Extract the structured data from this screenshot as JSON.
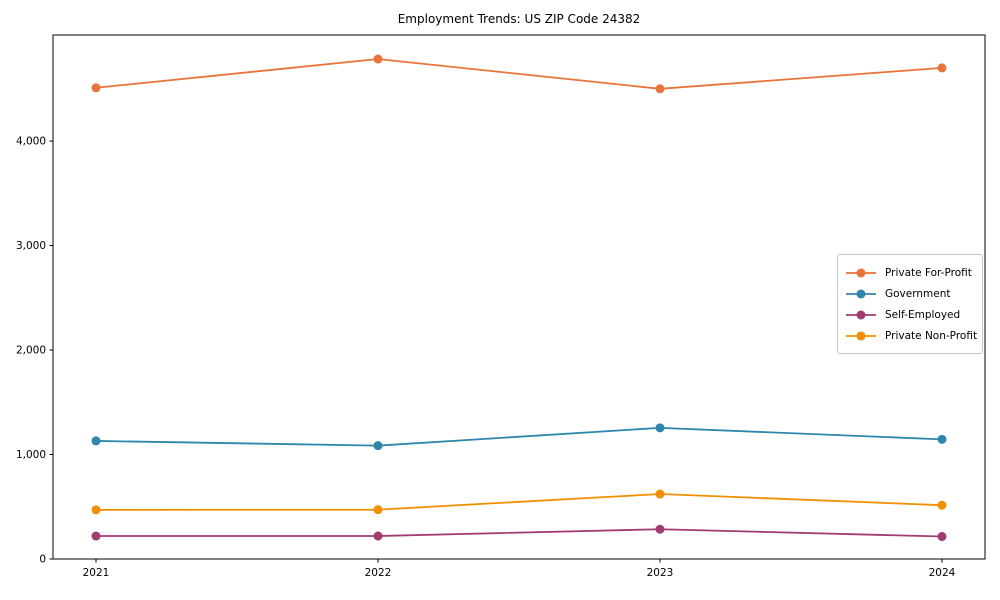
{
  "figure": {
    "title": "Employment Trends: US ZIP Code 24382",
    "background_color": "#ffffff",
    "axis_color": "#000000",
    "tick_label_color": "#000000"
  },
  "chart_data": {
    "type": "line",
    "title": "Employment Trends: US ZIP Code 24382",
    "xlabel": "",
    "ylabel": "",
    "x": [
      2021,
      2022,
      2023,
      2024
    ],
    "x_tick_labels": [
      "2021",
      "2022",
      "2023",
      "2024"
    ],
    "series": [
      {
        "name": "Private For-Profit",
        "color": "#E8743B",
        "values": [
          4510,
          4785,
          4500,
          4700
        ]
      },
      {
        "name": "Government",
        "color": "#2E86AB",
        "values": [
          1130,
          1085,
          1255,
          1145
        ]
      },
      {
        "name": "Self-Employed",
        "color": "#A23B72",
        "values": [
          220,
          220,
          285,
          215
        ]
      },
      {
        "name": "Private Non-Profit",
        "color": "#F18F01",
        "values": [
          470,
          472,
          622,
          515
        ]
      }
    ],
    "y_ticks": [
      0,
      1000,
      2000,
      3000,
      4000
    ],
    "y_tick_labels": [
      "0",
      "1,000",
      "2,000",
      "3,000",
      "4,000"
    ],
    "ylim": [
      0,
      5015
    ],
    "grid": false,
    "marker": "circle",
    "legend_position": "center-right-inside"
  }
}
